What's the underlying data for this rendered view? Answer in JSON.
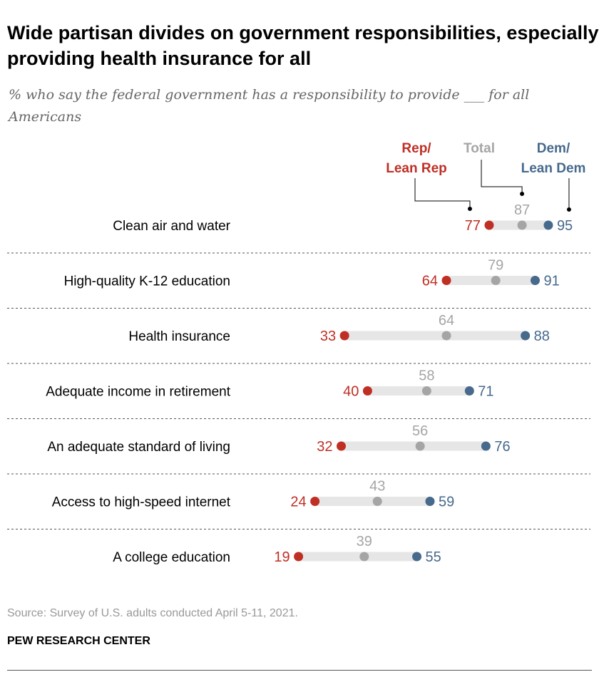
{
  "title": "Wide partisan divides on government responsibilities, especially providing health insurance for all",
  "subtitle": "% who say the federal government has a responsibility to provide ___ for all Americans",
  "source": "Source: Survey of U.S. adults conducted April 5-11, 2021.",
  "brand": "PEW RESEARCH CENTER",
  "colors": {
    "rep": "#bf2f24",
    "total": "#a5a5a5",
    "dem": "#46698c",
    "bar": "#e6e6e6"
  },
  "chart_data": {
    "type": "dot",
    "title": "Wide partisan divides on government responsibilities, especially providing health insurance for all",
    "xlim": [
      0,
      100
    ],
    "legend": {
      "rep": [
        "Rep/",
        "Lean Rep"
      ],
      "total": "Total",
      "dem": [
        "Dem/",
        "Lean Dem"
      ]
    },
    "categories": [
      "Clean air and water",
      "High-quality K-12 education",
      "Health insurance",
      "Adequate income in retirement",
      "An adequate standard of living",
      "Access to high-speed internet",
      "A college education"
    ],
    "series": [
      {
        "name": "Rep/Lean Rep",
        "values": [
          77,
          64,
          33,
          40,
          32,
          24,
          19
        ]
      },
      {
        "name": "Total",
        "values": [
          87,
          79,
          64,
          58,
          56,
          43,
          39
        ]
      },
      {
        "name": "Dem/Lean Dem",
        "values": [
          95,
          91,
          88,
          71,
          76,
          59,
          55
        ]
      }
    ]
  }
}
